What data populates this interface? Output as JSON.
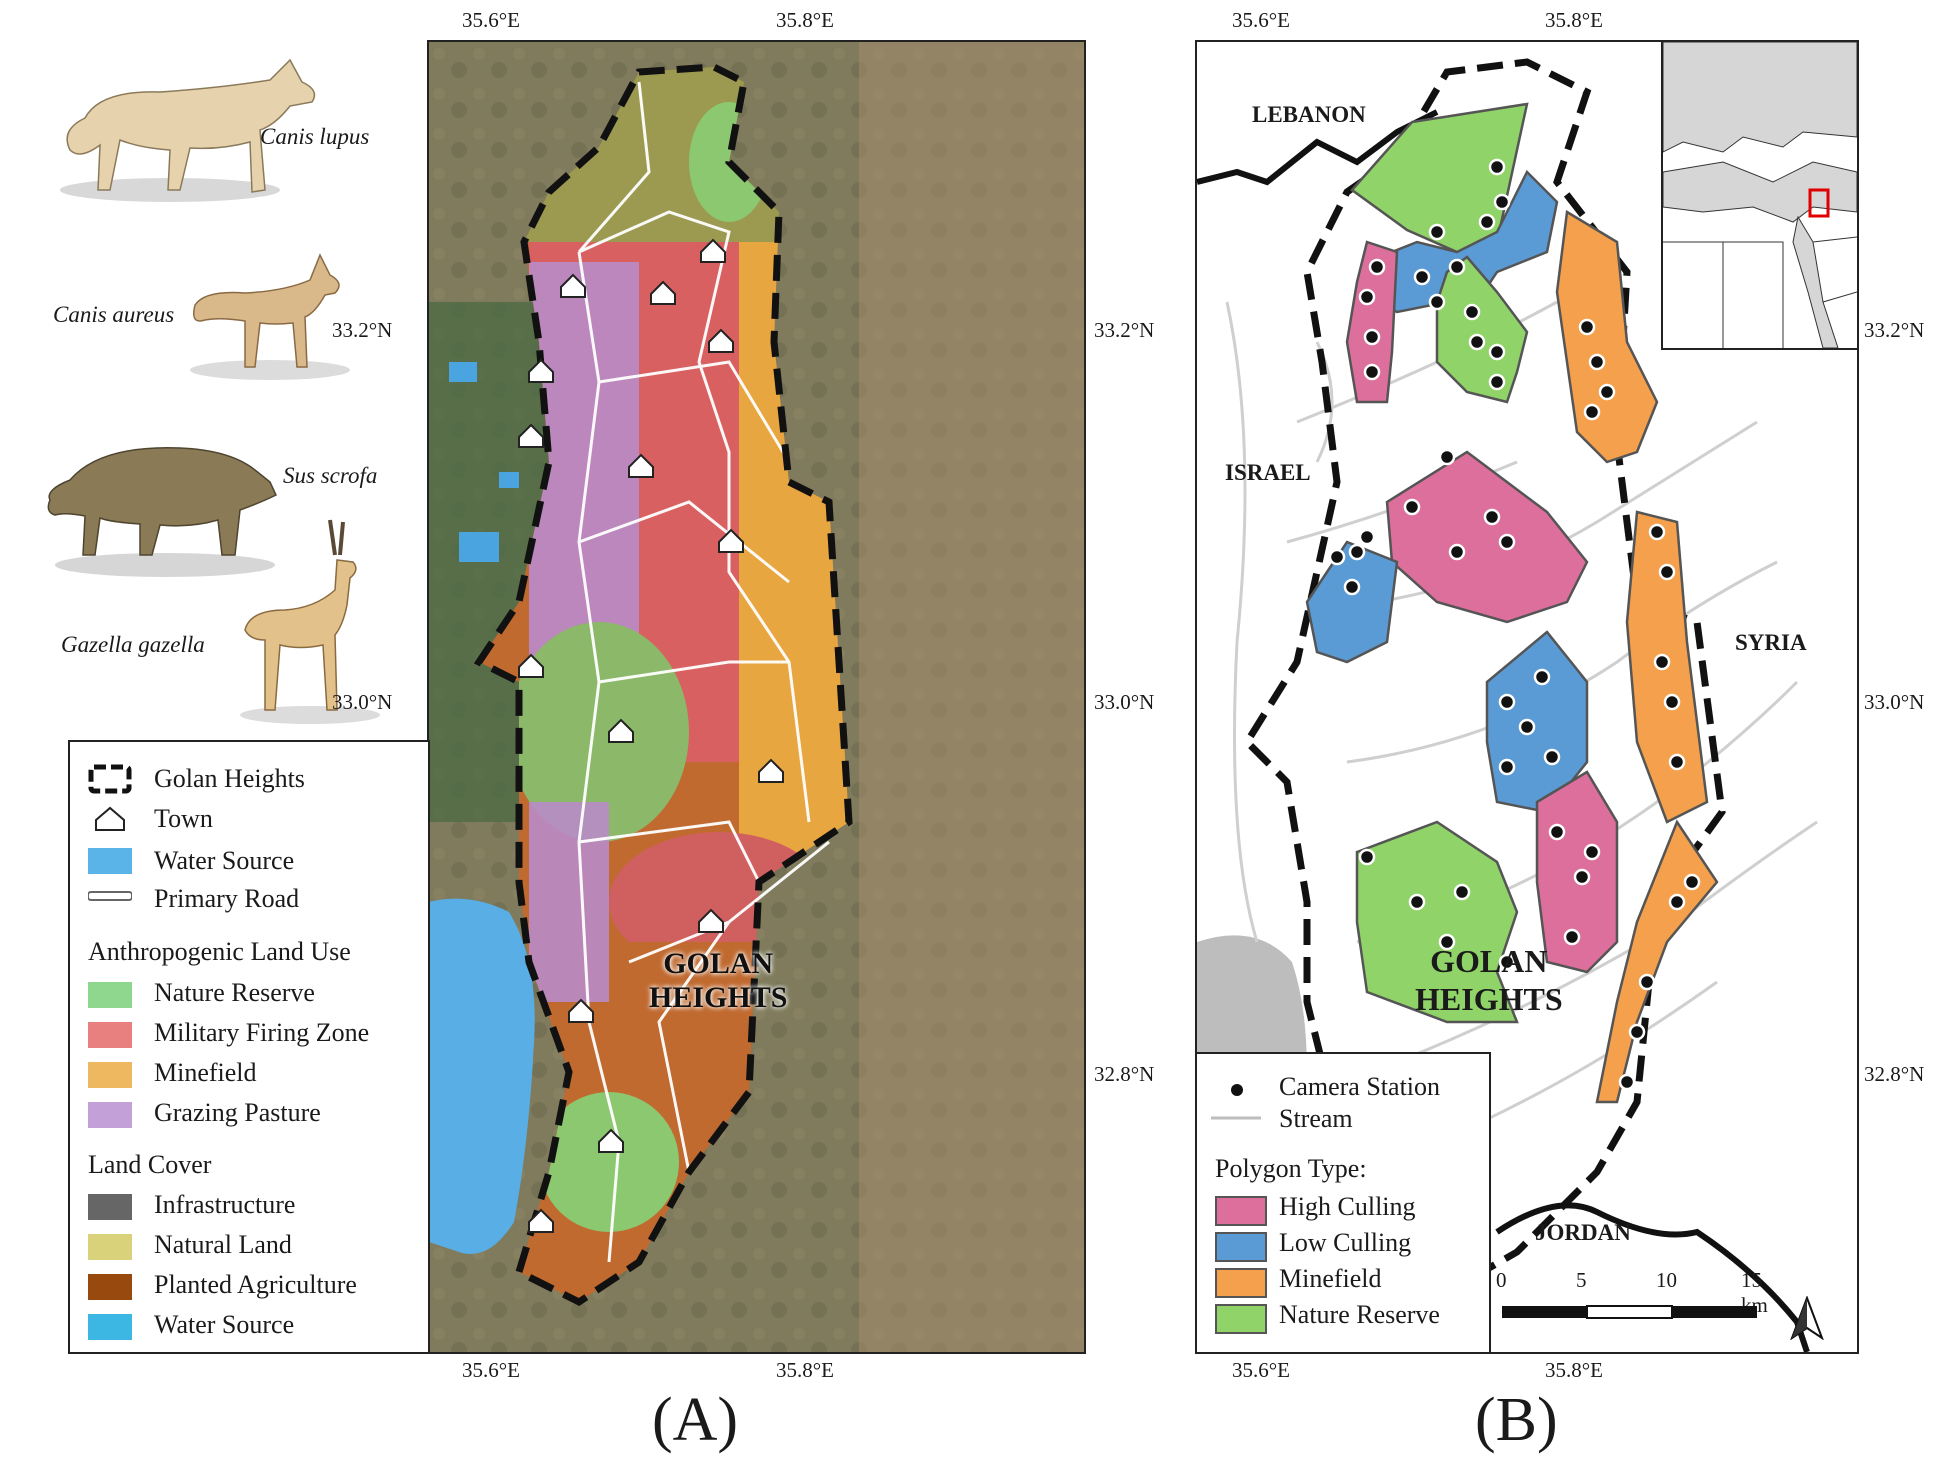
{
  "panel_labels": {
    "a": "(A)",
    "b": "(B)"
  },
  "species": [
    {
      "name": "Canis lupus",
      "icon": "wolf-illustration"
    },
    {
      "name": "Canis aureus",
      "icon": "jackal-illustration"
    },
    {
      "name": "Sus scrofa",
      "icon": "boar-illustration"
    },
    {
      "name": "Gazella gazella",
      "icon": "gazelle-illustration"
    }
  ],
  "map_a": {
    "region_label_line1": "GOLAN",
    "region_label_line2": "HEIGHTS",
    "lon_ticks": [
      "35.6°E",
      "35.8°E"
    ],
    "lat_ticks": [
      "33.2°N",
      "33.0°N",
      "32.8°N"
    ]
  },
  "legend_a": {
    "items": [
      {
        "label": "Golan Heights",
        "key": "dashed-boundary"
      },
      {
        "label": "Town",
        "key": "town-icon"
      },
      {
        "label": "Water Source",
        "key": "#5ab4e8"
      },
      {
        "label": "Primary Road",
        "key": "white-line"
      }
    ],
    "land_use_title": "Anthropogenic Land Use",
    "land_use": [
      {
        "label": "Nature Reserve",
        "color": "#8fd68f"
      },
      {
        "label": "Military Firing Zone",
        "color": "#e98080"
      },
      {
        "label": "Minefield",
        "color": "#eeb860"
      },
      {
        "label": "Grazing Pasture",
        "color": "#c3a0d8"
      }
    ],
    "land_cover_title": "Land Cover",
    "land_cover": [
      {
        "label": "Infrastructure",
        "color": "#666666"
      },
      {
        "label": "Natural Land",
        "color": "#d9d27a"
      },
      {
        "label": "Planted Agriculture",
        "color": "#984a0e"
      },
      {
        "label": "Water Source",
        "color": "#3cb6e2"
      }
    ]
  },
  "map_b": {
    "region_label_line1": "GOLAN",
    "region_label_line2": "HEIGHTS",
    "countries": [
      "LEBANON",
      "ISRAEL",
      "SYRIA",
      "JORDAN"
    ],
    "lon_ticks": [
      "35.6°E",
      "35.8°E"
    ],
    "lat_ticks": [
      "33.2°N",
      "33.0°N",
      "32.8°N"
    ]
  },
  "legend_b": {
    "camera_station": "Camera Station",
    "stream": "Stream",
    "polygon_type_title": "Polygon Type:",
    "polygon_types": [
      {
        "label": "High Culling",
        "color": "#dd6f9d"
      },
      {
        "label": "Low Culling",
        "color": "#5b9bd5"
      },
      {
        "label": "Minefield",
        "color": "#f5a04c"
      },
      {
        "label": "Nature Reserve",
        "color": "#90d469"
      }
    ]
  },
  "scale_bar": {
    "labels": [
      "0",
      "5",
      "10",
      "15 km"
    ]
  }
}
